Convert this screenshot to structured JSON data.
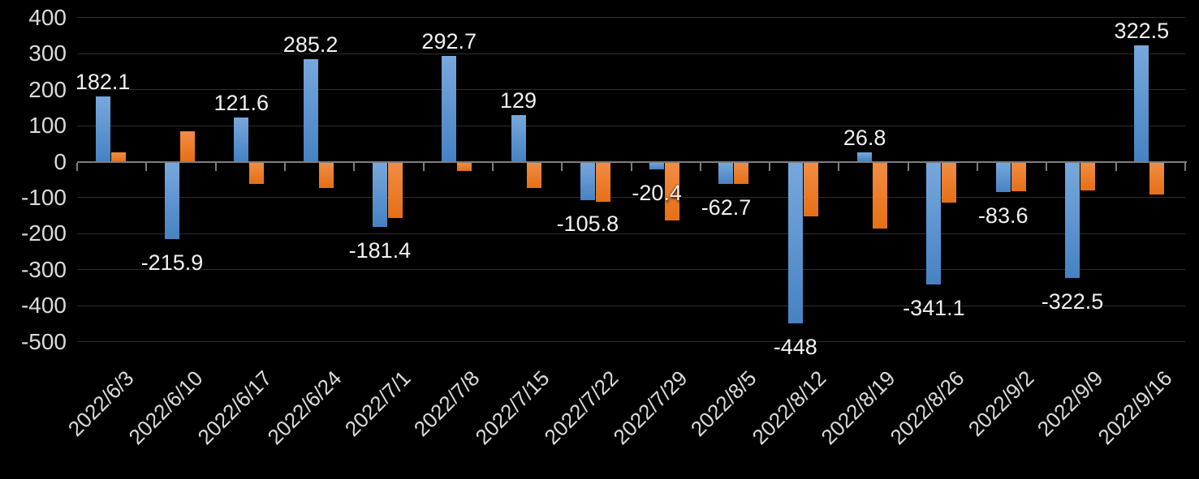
{
  "chart_data": {
    "type": "bar",
    "title": "",
    "xlabel": "",
    "ylabel": "",
    "legend": false,
    "grid": true,
    "background": "#000000",
    "grid_color": "#2F2F2F",
    "axis_color": "#7E7E7E",
    "tick_label_color": "#DBDBDB",
    "data_label_color": "#F2F2F2",
    "ylim": [
      -500,
      400
    ],
    "y_tick_step": 100,
    "y_tick_labels": [
      "400",
      "300",
      "200",
      "100",
      "0",
      "-100",
      "-200",
      "-300",
      "-400",
      "-500"
    ],
    "categories": [
      "2022/6/3",
      "2022/6/10",
      "2022/6/17",
      "2022/6/24",
      "2022/7/1",
      "2022/7/8",
      "2022/7/15",
      "2022/7/22",
      "2022/7/29",
      "2022/8/5",
      "2022/8/12",
      "2022/8/19",
      "2022/8/26",
      "2022/9/2",
      "2022/9/9",
      "2022/9/16"
    ],
    "series": [
      {
        "name": "blue",
        "color_top": "#78A8DC",
        "color_bottom": "#4682C3",
        "values": [
          182.1,
          -215.9,
          121.6,
          285.2,
          -181.4,
          292.7,
          129,
          -105.8,
          -20.4,
          -62.7,
          -448,
          26.8,
          -341.1,
          -83.6,
          -322.5,
          322.5
        ],
        "data_labels": [
          "182.1",
          "-215.9",
          "121.6",
          "285.2",
          "-181.4",
          "292.7",
          "129",
          "-105.8",
          "-20.4",
          "-62.7",
          "-448",
          "26.8",
          "-341.1",
          "-83.6",
          "-322.5",
          "322.5"
        ]
      },
      {
        "name": "orange",
        "color_top": "#F28D44",
        "color_bottom": "#E56F15",
        "values": [
          27,
          85,
          -61,
          -74,
          -157,
          -26,
          -74,
          -112,
          -164,
          -61,
          -151,
          -186,
          -113,
          -82,
          -80,
          -90
        ],
        "data_labels": []
      }
    ]
  }
}
